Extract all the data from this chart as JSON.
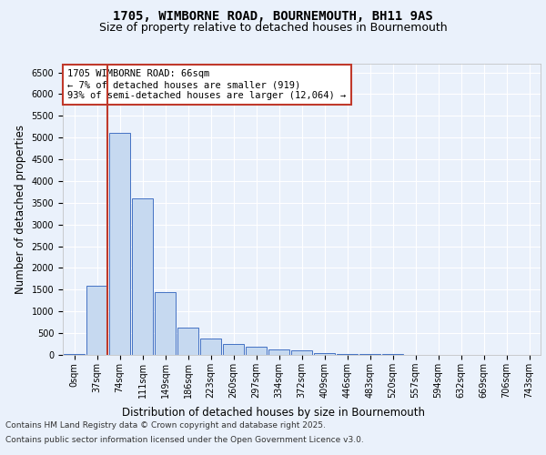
{
  "title_line1": "1705, WIMBORNE ROAD, BOURNEMOUTH, BH11 9AS",
  "title_line2": "Size of property relative to detached houses in Bournemouth",
  "xlabel": "Distribution of detached houses by size in Bournemouth",
  "ylabel": "Number of detached properties",
  "bar_labels": [
    "0sqm",
    "37sqm",
    "74sqm",
    "111sqm",
    "149sqm",
    "186sqm",
    "223sqm",
    "260sqm",
    "297sqm",
    "334sqm",
    "372sqm",
    "409sqm",
    "446sqm",
    "483sqm",
    "520sqm",
    "557sqm",
    "594sqm",
    "632sqm",
    "669sqm",
    "706sqm",
    "743sqm"
  ],
  "bar_values": [
    20,
    1600,
    5100,
    3600,
    1450,
    620,
    380,
    260,
    190,
    130,
    100,
    50,
    30,
    20,
    15,
    10,
    5,
    5,
    5,
    5,
    5
  ],
  "bar_color": "#c6d9f0",
  "bar_edge_color": "#4472c4",
  "vline_x_idx": 1,
  "vline_color": "#c0392b",
  "annotation_text": "1705 WIMBORNE ROAD: 66sqm\n← 7% of detached houses are smaller (919)\n93% of semi-detached houses are larger (12,064) →",
  "annotation_box_color": "#ffffff",
  "annotation_box_edge_color": "#c0392b",
  "ylim": [
    0,
    6700
  ],
  "yticks": [
    0,
    500,
    1000,
    1500,
    2000,
    2500,
    3000,
    3500,
    4000,
    4500,
    5000,
    5500,
    6000,
    6500
  ],
  "footer_line1": "Contains HM Land Registry data © Crown copyright and database right 2025.",
  "footer_line2": "Contains public sector information licensed under the Open Government Licence v3.0.",
  "bg_color": "#eaf1fb",
  "plot_bg_color": "#eaf1fb",
  "grid_color": "#ffffff",
  "title_fontsize": 10,
  "subtitle_fontsize": 9,
  "axis_label_fontsize": 8.5,
  "tick_fontsize": 7,
  "annotation_fontsize": 7.5,
  "footer_fontsize": 6.5
}
